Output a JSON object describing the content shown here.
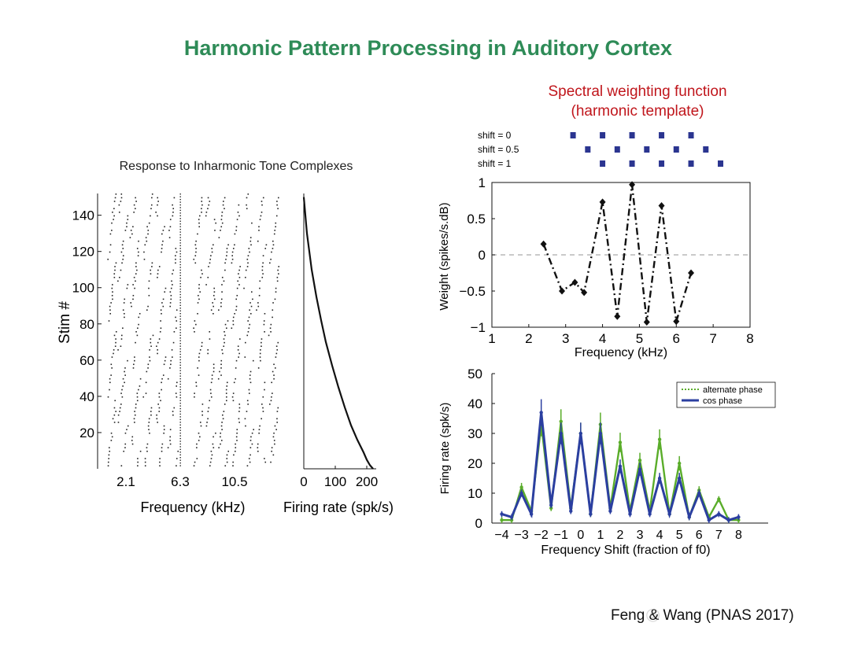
{
  "slide": {
    "title": "Harmonic Pattern Processing in Auditory Cortex",
    "right_title_line1": "Spectral weighting function",
    "right_title_line2": "(harmonic template)",
    "credit": "Feng & Wang (PNAS 2017)"
  },
  "colors": {
    "title": "#2e8b57",
    "red_title": "#c0161c",
    "cos_phase": "#2b3fa0",
    "alternate_phase": "#5aad2a",
    "template_marker": "#2b3590"
  },
  "chart_data": [
    {
      "type": "raster",
      "title": "Response to Inharmonic Tone Complexes",
      "ylabel": "Stim #",
      "xlabel": "Frequency (kHz)",
      "xticks": [
        "2.1",
        "6.3",
        "10.5"
      ],
      "yticks": [
        20,
        40,
        60,
        80,
        100,
        120,
        140
      ],
      "ylim": [
        0,
        152
      ],
      "n_stimuli": 152
    },
    {
      "type": "line",
      "xlabel": "Firing rate (spk/s)",
      "xticks": [
        0,
        100,
        200
      ],
      "xlim": [
        0,
        230
      ],
      "ylim": [
        0,
        152
      ],
      "x": [
        0,
        10,
        25,
        40,
        55,
        70,
        90,
        110,
        130,
        150,
        170,
        190,
        200,
        210,
        220
      ],
      "y": [
        150,
        130,
        110,
        95,
        82,
        70,
        57,
        45,
        34,
        24,
        16,
        9,
        5,
        2,
        0
      ]
    },
    {
      "type": "line",
      "xlabel": "Frequency (kHz)",
      "ylabel": "Weight (spikes/s.dB)",
      "xlim": [
        1,
        8
      ],
      "ylim": [
        -1,
        1
      ],
      "xticks": [
        1,
        2,
        3,
        4,
        5,
        6,
        7,
        8
      ],
      "yticks": [
        1,
        0.5,
        0,
        -0.5,
        -1
      ],
      "ytick_labels": [
        "1",
        "0.5",
        "0",
        "−0.5",
        "−1"
      ],
      "x": [
        2.4,
        2.9,
        3.25,
        3.5,
        4.0,
        4.4,
        4.8,
        5.2,
        5.6,
        6.0,
        6.4
      ],
      "y": [
        0.15,
        -0.5,
        -0.38,
        -0.52,
        0.73,
        -0.85,
        0.97,
        -0.93,
        0.68,
        -0.92,
        -0.25
      ],
      "zero_line": true,
      "template_rows": [
        {
          "label": "shift = 0",
          "x": [
            3.2,
            4.0,
            4.8,
            5.6,
            6.4
          ]
        },
        {
          "label": "shift = 0.5",
          "x": [
            3.6,
            4.4,
            5.2,
            6.0,
            6.8
          ]
        },
        {
          "label": "shift = 1",
          "x": [
            4.0,
            4.8,
            5.6,
            6.4,
            7.2
          ]
        }
      ]
    },
    {
      "type": "line",
      "xlabel": "Frequency Shift (fraction of f0)",
      "ylabel": "Firing rate (spk/s)",
      "xlim": [
        -4.5,
        9.5
      ],
      "ylim": [
        0,
        50
      ],
      "xticks": [
        -4,
        -3,
        -2,
        -1,
        0,
        1,
        2,
        3,
        4,
        5,
        6,
        7,
        8
      ],
      "xtick_labels": [
        "−4",
        "−3",
        "−2",
        "−1",
        "0",
        "1",
        "2",
        "3",
        "4",
        "5",
        "6",
        "7",
        "8"
      ],
      "yticks": [
        0,
        10,
        20,
        30,
        40,
        50
      ],
      "legend": "top-right",
      "series": [
        {
          "name": "alternate phase",
          "x": [
            -4,
            -3.5,
            -3,
            -2.5,
            -2,
            -1.5,
            -1,
            -0.5,
            0,
            0.5,
            1,
            1.5,
            2,
            2.5,
            3,
            3.5,
            4,
            4.5,
            5,
            5.5,
            6,
            6.5,
            7,
            7.5,
            8
          ],
          "y": [
            1,
            1,
            12,
            4,
            33,
            5,
            34,
            5,
            30,
            3,
            33,
            5,
            27,
            4,
            21,
            4,
            28,
            3,
            20,
            2,
            11,
            2,
            8,
            1,
            1
          ]
        },
        {
          "name": "cos phase",
          "x": [
            -4,
            -3.5,
            -3,
            -2.5,
            -2,
            -1.5,
            -1,
            -0.5,
            0,
            0.5,
            1,
            1.5,
            2,
            2.5,
            3,
            3.5,
            4,
            4.5,
            5,
            5.5,
            6,
            6.5,
            7,
            7.5,
            8
          ],
          "y": [
            3,
            2,
            10,
            3,
            37,
            6,
            30,
            4,
            30,
            3,
            30,
            4,
            19,
            3,
            18,
            3,
            15,
            3,
            15,
            2,
            10,
            1,
            3,
            1,
            2
          ]
        }
      ]
    }
  ]
}
